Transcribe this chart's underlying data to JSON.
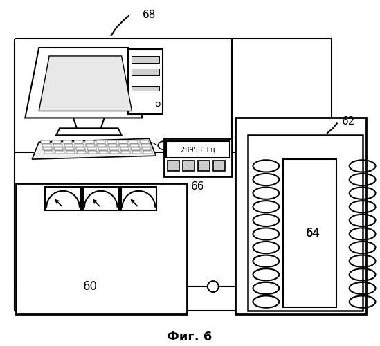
{
  "title": "Фиг. 6",
  "label_68": "68",
  "label_66": "66",
  "label_62": "62",
  "label_64": "64",
  "label_60": "60",
  "display_text": "28953 Гц",
  "bg_color": "#ffffff",
  "line_color": "#000000",
  "title_fontsize": 13
}
